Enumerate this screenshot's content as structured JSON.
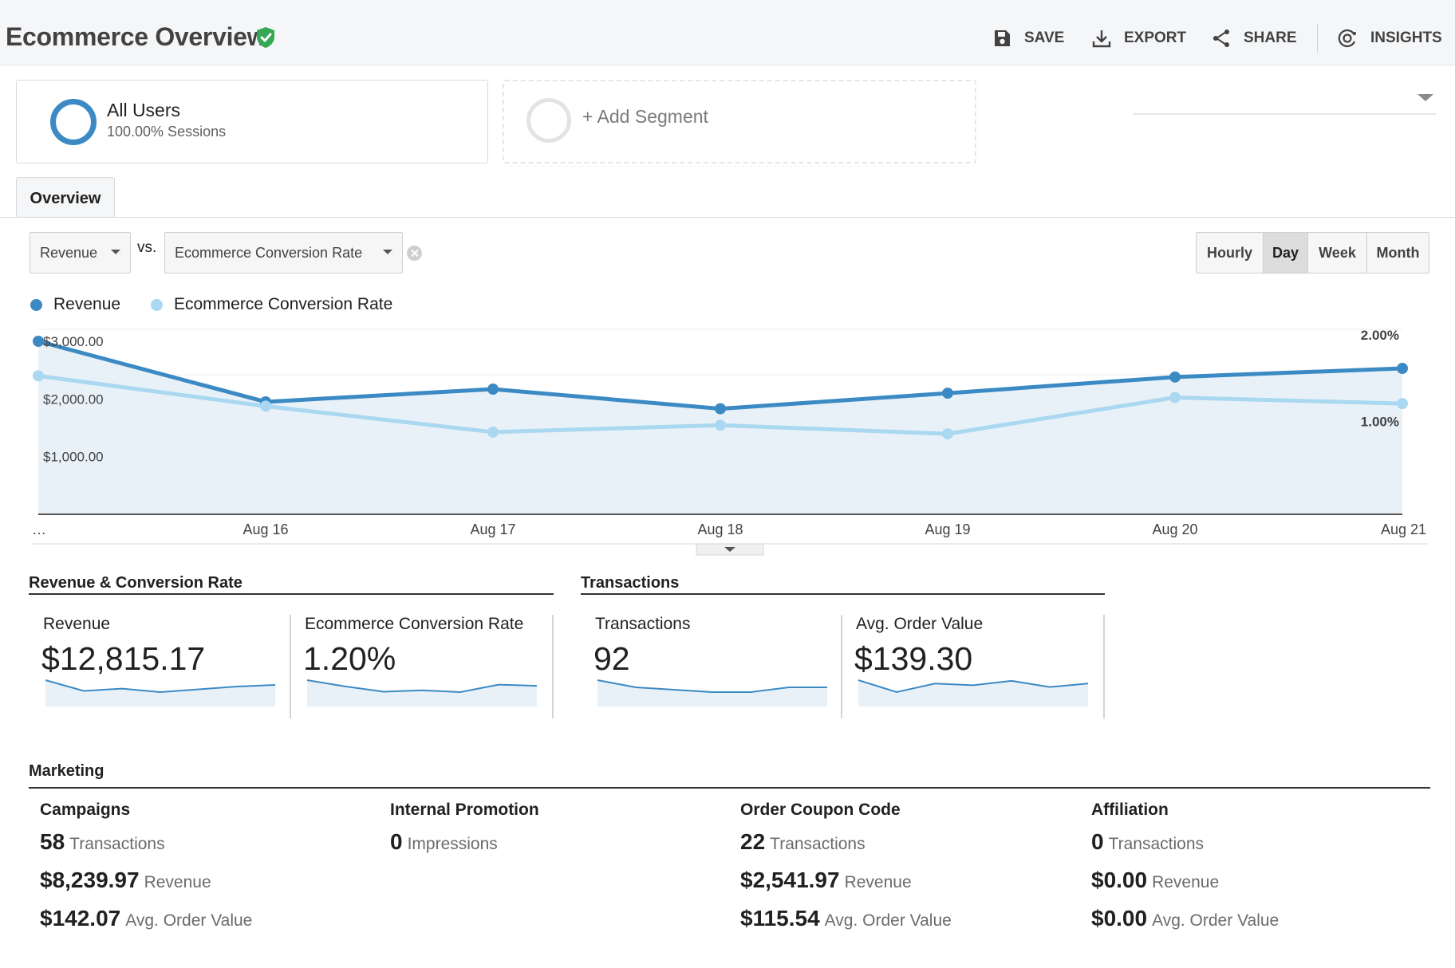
{
  "header": {
    "title": "Ecommerce Overview",
    "actions": {
      "save": "SAVE",
      "export": "EXPORT",
      "share": "SHARE",
      "insights": "INSIGHTS"
    }
  },
  "segments": {
    "active": {
      "name": "All Users",
      "detail": "100.00% Sessions"
    },
    "add_label": "+ Add Segment"
  },
  "tabs": [
    {
      "label": "Overview",
      "active": true
    }
  ],
  "controls": {
    "primary_metric": "Revenue",
    "vs_label": "vs.",
    "secondary_metric": "Ecommerce Conversion Rate",
    "periods": [
      "Hourly",
      "Day",
      "Week",
      "Month"
    ],
    "active_period": "Day"
  },
  "chart_data": {
    "type": "line",
    "categories": [
      "…",
      "Aug 16",
      "Aug 17",
      "Aug 18",
      "Aug 19",
      "Aug 20",
      "Aug 21"
    ],
    "series": [
      {
        "name": "Revenue",
        "color": "#3b8ac4",
        "axis": "left",
        "values": [
          3000,
          1950,
          2170,
          1830,
          2100,
          2380,
          2530
        ]
      },
      {
        "name": "Ecommerce Conversion Rate",
        "color": "#a9d8f0",
        "axis": "right",
        "values": [
          1.6,
          1.25,
          0.95,
          1.03,
          0.93,
          1.35,
          1.28
        ]
      }
    ],
    "y_left": {
      "ticks": [
        "$3,000.00",
        "$2,000.00",
        "$1,000.00"
      ],
      "tick_values": [
        3000,
        2000,
        1000
      ],
      "range": [
        0,
        3000
      ]
    },
    "y_right": {
      "ticks": [
        "2.00%",
        "1.00%"
      ],
      "tick_values": [
        2,
        1
      ],
      "range": [
        0,
        2
      ]
    },
    "grid": true,
    "area_fill": true
  },
  "scorecard_groups": [
    {
      "title": "Revenue & Conversion Rate",
      "cards": [
        {
          "label": "Revenue",
          "value": "$12,815.17",
          "spark": [
            3000,
            1950,
            2170,
            1830,
            2100,
            2380,
            2530
          ]
        },
        {
          "label": "Ecommerce Conversion Rate",
          "value": "1.20%",
          "spark": [
            1.6,
            1.25,
            0.95,
            1.03,
            0.93,
            1.35,
            1.28
          ]
        }
      ]
    },
    {
      "title": "Transactions",
      "cards": [
        {
          "label": "Transactions",
          "value": "92",
          "spark": [
            20,
            14,
            12,
            10,
            10,
            14,
            14
          ]
        },
        {
          "label": "Avg. Order Value",
          "value": "$139.30",
          "spark": [
            150,
            115,
            140,
            135,
            148,
            130,
            140
          ]
        }
      ]
    }
  ],
  "marketing": {
    "title": "Marketing",
    "columns": [
      {
        "title": "Campaigns",
        "rows": [
          {
            "value": "58",
            "unit": "Transactions"
          },
          {
            "value": "$8,239.97",
            "unit": "Revenue"
          },
          {
            "value": "$142.07",
            "unit": "Avg. Order Value"
          }
        ]
      },
      {
        "title": "Internal Promotion",
        "rows": [
          {
            "value": "0",
            "unit": "Impressions"
          }
        ]
      },
      {
        "title": "Order Coupon Code",
        "rows": [
          {
            "value": "22",
            "unit": "Transactions"
          },
          {
            "value": "$2,541.97",
            "unit": "Revenue"
          },
          {
            "value": "$115.54",
            "unit": "Avg. Order Value"
          }
        ]
      },
      {
        "title": "Affiliation",
        "rows": [
          {
            "value": "0",
            "unit": "Transactions"
          },
          {
            "value": "$0.00",
            "unit": "Revenue"
          },
          {
            "value": "$0.00",
            "unit": "Avg. Order Value"
          }
        ]
      }
    ]
  },
  "colors": {
    "revenue": "#3b8ac4",
    "conversion": "#a9d8f0",
    "verified": "#34a853",
    "area": "#e9f1f8"
  },
  "icons": [
    "verified-icon",
    "save-icon",
    "export-icon",
    "share-icon",
    "insights-icon",
    "clear-icon",
    "dropdown-caret-icon"
  ]
}
